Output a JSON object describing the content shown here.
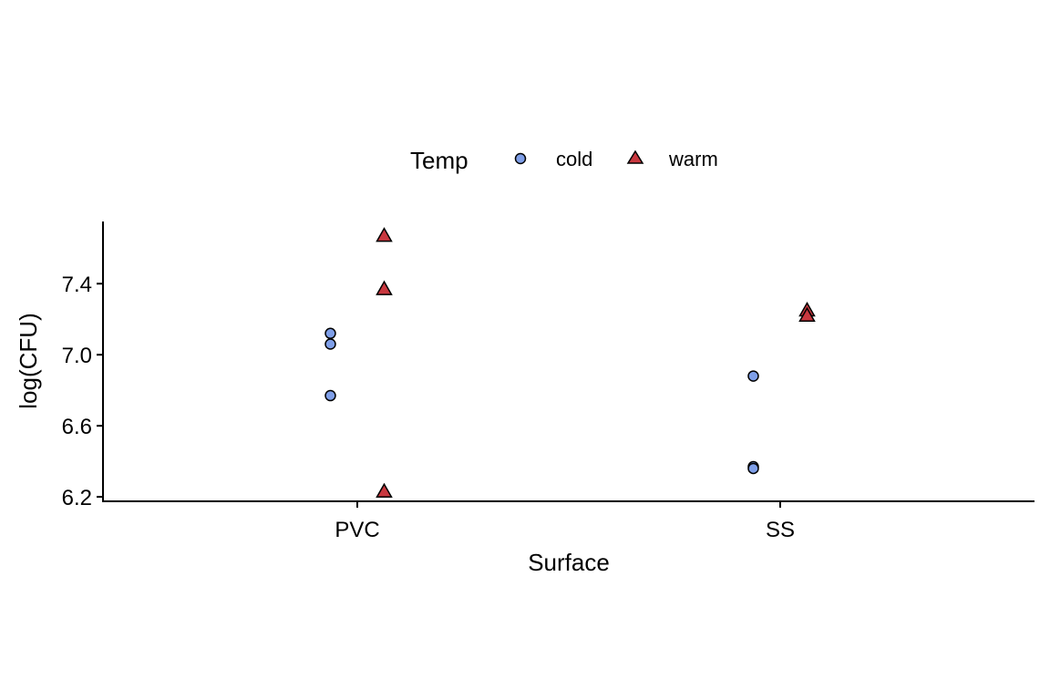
{
  "chart_data": {
    "type": "scatter",
    "title": "",
    "xlabel": "Surface",
    "ylabel": "log(CFU)",
    "categories": [
      "PVC",
      "SS"
    ],
    "ylim": [
      6.175,
      7.75
    ],
    "yticks": [
      6.2,
      6.6,
      7.0,
      7.4
    ],
    "ytick_labels": [
      "6.2",
      "6.6",
      "7.0",
      "7.4"
    ],
    "grid": false,
    "legend": {
      "title": "Temp",
      "position": "top",
      "entries": [
        "cold",
        "warm"
      ]
    },
    "series": [
      {
        "name": "cold",
        "shape": "circle",
        "color": "#7F9FE8",
        "points": [
          {
            "x": "PVC",
            "y": 7.12
          },
          {
            "x": "PVC",
            "y": 7.06
          },
          {
            "x": "PVC",
            "y": 6.77
          },
          {
            "x": "SS",
            "y": 6.88
          },
          {
            "x": "SS",
            "y": 6.37
          },
          {
            "x": "SS",
            "y": 6.36
          }
        ]
      },
      {
        "name": "warm",
        "shape": "triangle",
        "color": "#C9383F",
        "points": [
          {
            "x": "PVC",
            "y": 7.67
          },
          {
            "x": "PVC",
            "y": 7.37
          },
          {
            "x": "PVC",
            "y": 6.23
          },
          {
            "x": "SS",
            "y": 7.25
          },
          {
            "x": "SS",
            "y": 7.22
          }
        ]
      }
    ]
  }
}
